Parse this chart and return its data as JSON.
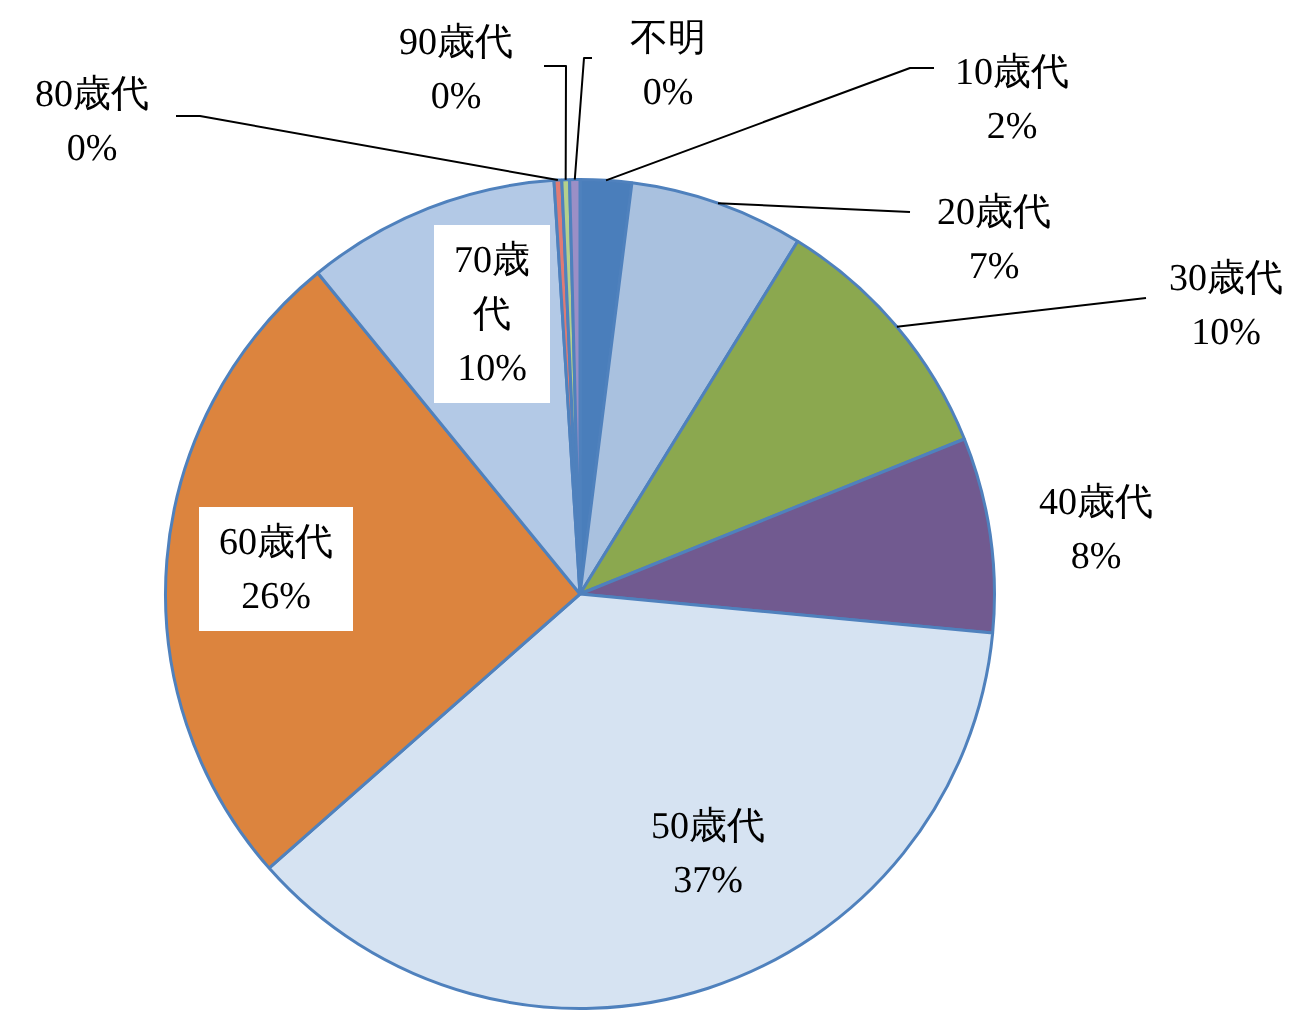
{
  "chart_data": {
    "type": "pie",
    "categories": [
      "10歳代",
      "20歳代",
      "30歳代",
      "40歳代",
      "50歳代",
      "60歳代",
      "70歳代",
      "80歳代",
      "90歳代",
      "不明"
    ],
    "values": [
      2.0,
      6.8,
      10.1,
      7.6,
      37.0,
      25.6,
      9.9,
      0.3,
      0.3,
      0.4
    ],
    "value_labels": [
      "2%",
      "7%",
      "10%",
      "8%",
      "37%",
      "26%",
      "10%",
      "0%",
      "0%",
      "0%"
    ],
    "colors": [
      "#4a7ebb",
      "#a9c1df",
      "#8ba84f",
      "#715a90",
      "#d6e3f2",
      "#dc843e",
      "#b3c9e6",
      "#e07b74",
      "#b5d08c",
      "#9b8fc6"
    ],
    "legend": false
  }
}
